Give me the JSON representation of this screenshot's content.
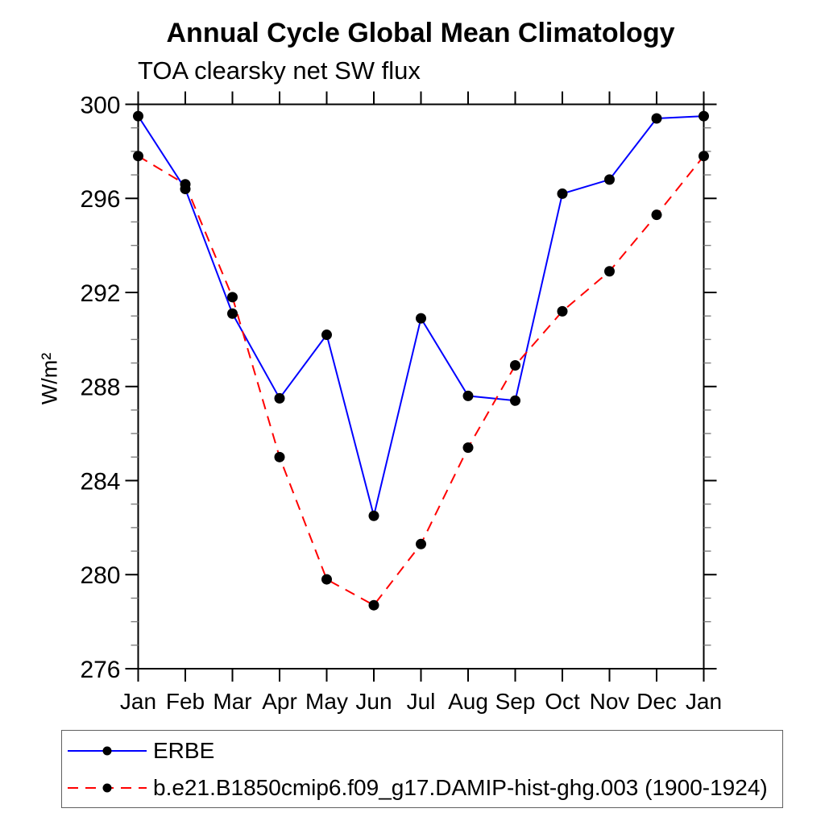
{
  "header": {
    "title": "Annual Cycle Global Mean Climatology",
    "subtitle": "TOA clearsky net SW flux"
  },
  "chart_data": {
    "type": "line",
    "categories": [
      "Jan",
      "Feb",
      "Mar",
      "Apr",
      "May",
      "Jun",
      "Jul",
      "Aug",
      "Sep",
      "Oct",
      "Nov",
      "Dec",
      "Jan"
    ],
    "series": [
      {
        "name": "ERBE",
        "color": "#0000ff",
        "line_style": "solid",
        "marker": "black-dot",
        "values": [
          299.5,
          296.4,
          291.1,
          287.5,
          290.2,
          282.5,
          290.9,
          287.6,
          287.4,
          296.2,
          296.8,
          299.4,
          299.5
        ]
      },
      {
        "name": "b.e21.B1850cmip6.f09_g17.DAMIP-hist-ghg.003 (1900-1924)",
        "color": "#ff0000",
        "line_style": "dashed",
        "marker": "black-dot",
        "values": [
          297.8,
          296.6,
          291.8,
          285.0,
          279.8,
          278.7,
          281.3,
          285.4,
          288.9,
          291.2,
          292.9,
          295.3,
          297.8
        ]
      }
    ],
    "xlabel": "",
    "ylabel": "W/m²",
    "ylim": [
      276,
      300
    ],
    "ytick_major": [
      276,
      280,
      284,
      288,
      292,
      296,
      300
    ],
    "ytick_minor_step": 1,
    "grid": false,
    "legend_position": "bottom"
  },
  "style": {
    "axis_color": "#000000",
    "minor_tick_color": "#808080",
    "marker_color": "#000000",
    "legend_border_color": "#606060"
  }
}
